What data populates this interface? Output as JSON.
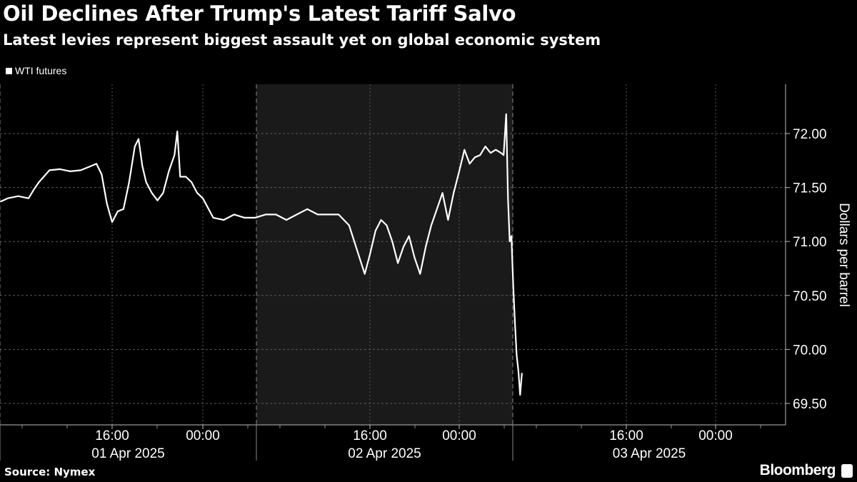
{
  "header": {
    "title": "Oil Declines After Trump's Latest Tariff Salvo",
    "subtitle": "Latest levies represent biggest assault yet on global economic system"
  },
  "footer": {
    "source": "Source: Nymex",
    "brand": "Bloomberg"
  },
  "colors": {
    "background": "#000000",
    "line": "#ffffff",
    "shaded_session": "#1a1a1a",
    "grid": "#555555"
  },
  "chart_data": {
    "type": "line",
    "title": "Oil Declines After Trump's Latest Tariff Salvo",
    "subtitle": "Latest levies represent biggest assault yet on global economic system",
    "ylabel": "Dollars per barrel",
    "xlabel": "",
    "y_axis_side": "right",
    "ylim": [
      69.3,
      72.45
    ],
    "yticks": [
      "69.50",
      "70.00",
      "70.50",
      "71.00",
      "71.50",
      "72.00"
    ],
    "grid": true,
    "legend_placement": "top-left",
    "shaded_period": [
      "2025-04-02",
      "2025-04-03"
    ],
    "x_tick_labels": [
      {
        "time": "2025-04-01 16:00",
        "label": "16:00"
      },
      {
        "time": "2025-04-02 00:00",
        "label": "00:00"
      },
      {
        "time": "2025-04-02 16:00",
        "label": "16:00"
      },
      {
        "time": "2025-04-03 00:00",
        "label": "00:00"
      },
      {
        "time": "2025-04-03 16:00",
        "label": "16:00"
      },
      {
        "time": "2025-04-04 00:00",
        "label": "00:00"
      }
    ],
    "x_day_labels": [
      "01 Apr 2025",
      "02 Apr 2025",
      "03 Apr 2025"
    ],
    "series": [
      {
        "name": "WTI futures",
        "points": [
          [
            "2025-04-01 05:20",
            71.37
          ],
          [
            "2025-04-01 06:00",
            71.4
          ],
          [
            "2025-04-01 07:00",
            71.42
          ],
          [
            "2025-04-01 08:00",
            71.4
          ],
          [
            "2025-04-01 08:30",
            71.48
          ],
          [
            "2025-04-01 09:00",
            71.55
          ],
          [
            "2025-04-01 10:00",
            71.66
          ],
          [
            "2025-04-01 11:00",
            71.67
          ],
          [
            "2025-04-01 12:00",
            71.65
          ],
          [
            "2025-04-01 13:00",
            71.66
          ],
          [
            "2025-04-01 14:00",
            71.7
          ],
          [
            "2025-04-01 14:30",
            71.72
          ],
          [
            "2025-04-01 15:00",
            71.62
          ],
          [
            "2025-04-01 15:30",
            71.35
          ],
          [
            "2025-04-01 16:00",
            71.18
          ],
          [
            "2025-04-01 16:30",
            71.28
          ],
          [
            "2025-04-01 17:00",
            71.3
          ],
          [
            "2025-04-01 17:30",
            71.55
          ],
          [
            "2025-04-01 18:00",
            71.88
          ],
          [
            "2025-04-01 18:20",
            71.95
          ],
          [
            "2025-04-01 18:40",
            71.7
          ],
          [
            "2025-04-01 19:00",
            71.55
          ],
          [
            "2025-04-01 19:30",
            71.45
          ],
          [
            "2025-04-01 20:00",
            71.38
          ],
          [
            "2025-04-01 20:30",
            71.45
          ],
          [
            "2025-04-01 21:00",
            71.65
          ],
          [
            "2025-04-01 21:30",
            71.8
          ],
          [
            "2025-04-01 21:45",
            72.02
          ],
          [
            "2025-04-01 22:00",
            71.6
          ],
          [
            "2025-04-01 22:30",
            71.6
          ],
          [
            "2025-04-01 23:00",
            71.55
          ],
          [
            "2025-04-01 23:30",
            71.45
          ],
          [
            "2025-04-02 00:00",
            71.4
          ],
          [
            "2025-04-02 01:00",
            71.22
          ],
          [
            "2025-04-02 02:00",
            71.2
          ],
          [
            "2025-04-02 03:00",
            71.25
          ],
          [
            "2025-04-02 04:00",
            71.22
          ],
          [
            "2025-04-02 05:00",
            71.22
          ],
          [
            "2025-04-02 06:00",
            71.25
          ],
          [
            "2025-04-02 07:00",
            71.25
          ],
          [
            "2025-04-02 08:00",
            71.2
          ],
          [
            "2025-04-02 09:00",
            71.25
          ],
          [
            "2025-04-02 10:00",
            71.3
          ],
          [
            "2025-04-02 11:00",
            71.25
          ],
          [
            "2025-04-02 12:00",
            71.25
          ],
          [
            "2025-04-02 13:00",
            71.25
          ],
          [
            "2025-04-02 14:00",
            71.15
          ],
          [
            "2025-04-02 14:30",
            71.0
          ],
          [
            "2025-04-02 15:00",
            70.85
          ],
          [
            "2025-04-02 15:30",
            70.7
          ],
          [
            "2025-04-02 16:00",
            70.88
          ],
          [
            "2025-04-02 16:30",
            71.1
          ],
          [
            "2025-04-02 17:00",
            71.2
          ],
          [
            "2025-04-02 17:30",
            71.15
          ],
          [
            "2025-04-02 18:00",
            71.0
          ],
          [
            "2025-04-02 18:30",
            70.8
          ],
          [
            "2025-04-02 19:00",
            70.95
          ],
          [
            "2025-04-02 19:30",
            71.05
          ],
          [
            "2025-04-02 20:00",
            70.85
          ],
          [
            "2025-04-02 20:30",
            70.7
          ],
          [
            "2025-04-02 21:00",
            70.95
          ],
          [
            "2025-04-02 21:30",
            71.15
          ],
          [
            "2025-04-02 22:00",
            71.3
          ],
          [
            "2025-04-02 22:30",
            71.45
          ],
          [
            "2025-04-02 23:00",
            71.2
          ],
          [
            "2025-04-02 23:30",
            71.45
          ],
          [
            "2025-04-03 00:00",
            71.65
          ],
          [
            "2025-04-03 00:30",
            71.85
          ],
          [
            "2025-04-03 01:00",
            71.72
          ],
          [
            "2025-04-03 01:30",
            71.78
          ],
          [
            "2025-04-03 02:00",
            71.8
          ],
          [
            "2025-04-03 02:30",
            71.88
          ],
          [
            "2025-04-03 03:00",
            71.82
          ],
          [
            "2025-04-03 03:30",
            71.85
          ],
          [
            "2025-04-03 04:00",
            71.82
          ],
          [
            "2025-04-03 04:15",
            71.8
          ],
          [
            "2025-04-03 04:30",
            72.18
          ],
          [
            "2025-04-03 04:40",
            71.4
          ],
          [
            "2025-04-03 04:50",
            71.0
          ],
          [
            "2025-04-03 05:00",
            71.05
          ],
          [
            "2025-04-03 05:10",
            70.6
          ],
          [
            "2025-04-03 05:20",
            70.25
          ],
          [
            "2025-04-03 05:30",
            69.95
          ],
          [
            "2025-04-03 05:40",
            69.8
          ],
          [
            "2025-04-03 05:50",
            69.58
          ],
          [
            "2025-04-03 06:00",
            69.78
          ]
        ]
      }
    ]
  }
}
